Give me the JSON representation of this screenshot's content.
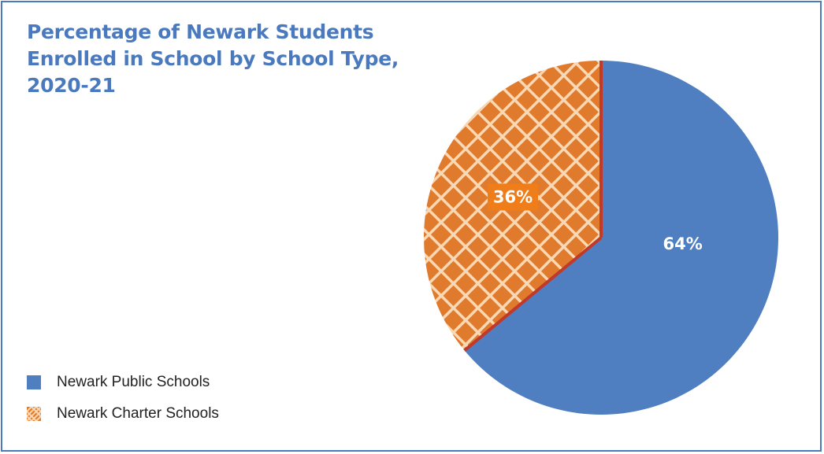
{
  "chart_data": {
    "type": "pie",
    "title_lines": [
      "Percentage of Newark Students",
      "Enrolled in School by School Type,",
      "2020-21"
    ],
    "categories": [
      "Newark Public Schools",
      "Newark Charter Schools"
    ],
    "values": [
      64,
      36
    ],
    "data_labels": [
      "64%",
      "36%"
    ],
    "legend_position": "bottom-left",
    "colors": {
      "public": "#4f7fc0",
      "charter": "#e07b2e",
      "charter_hatch": "#fbd8b4",
      "separator": "#c0392b",
      "title": "#4a79bd",
      "frame": "#4a79bd",
      "charter_label_bg": "#ee7d1a"
    },
    "patterns": [
      "solid",
      "diagonal-crosshatch"
    ]
  }
}
